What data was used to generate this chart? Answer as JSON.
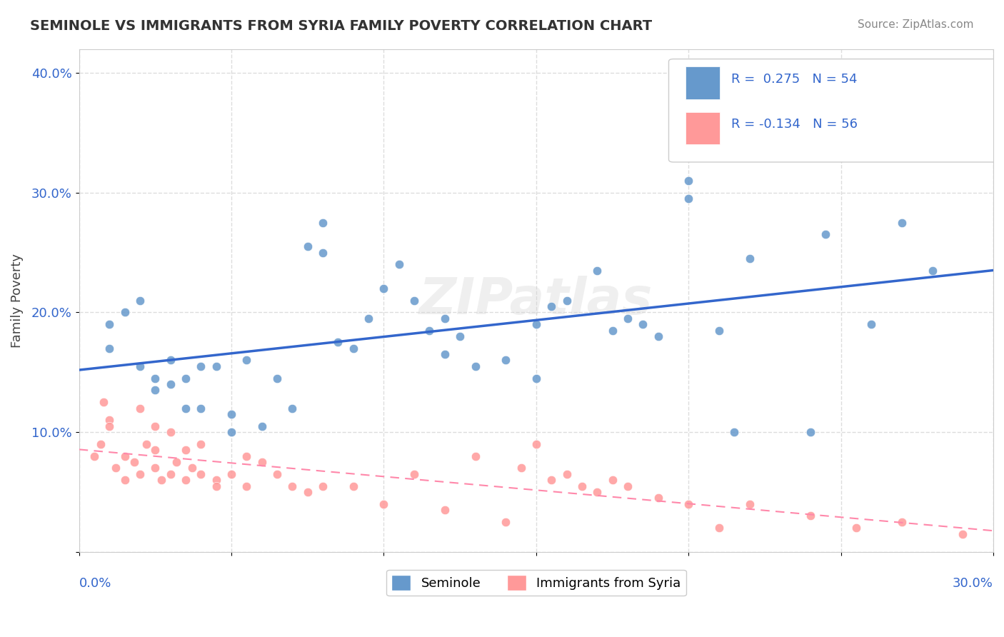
{
  "title": "SEMINOLE VS IMMIGRANTS FROM SYRIA FAMILY POVERTY CORRELATION CHART",
  "source": "Source: ZipAtlas.com",
  "ylabel": "Family Poverty",
  "xlim": [
    0.0,
    0.3
  ],
  "ylim": [
    0.0,
    0.42
  ],
  "yticks": [
    0.0,
    0.1,
    0.2,
    0.3,
    0.4
  ],
  "ytick_labels": [
    "",
    "10.0%",
    "20.0%",
    "30.0%",
    "40.0%"
  ],
  "blue_color": "#6699CC",
  "pink_color": "#FF9999",
  "blue_line_color": "#3366CC",
  "pink_line_color": "#FF88AA",
  "watermark": "ZIPatlas",
  "background_color": "#FFFFFF",
  "grid_color": "#DDDDDD",
  "seminole_x": [
    0.01,
    0.01,
    0.015,
    0.02,
    0.02,
    0.025,
    0.025,
    0.03,
    0.03,
    0.035,
    0.035,
    0.04,
    0.04,
    0.045,
    0.05,
    0.05,
    0.055,
    0.06,
    0.065,
    0.07,
    0.075,
    0.08,
    0.08,
    0.085,
    0.09,
    0.095,
    0.1,
    0.105,
    0.11,
    0.115,
    0.12,
    0.12,
    0.125,
    0.13,
    0.14,
    0.15,
    0.15,
    0.155,
    0.16,
    0.17,
    0.175,
    0.18,
    0.185,
    0.19,
    0.2,
    0.2,
    0.21,
    0.215,
    0.22,
    0.24,
    0.245,
    0.26,
    0.27,
    0.28
  ],
  "seminole_y": [
    0.19,
    0.17,
    0.2,
    0.21,
    0.155,
    0.145,
    0.135,
    0.14,
    0.16,
    0.12,
    0.145,
    0.12,
    0.155,
    0.155,
    0.1,
    0.115,
    0.16,
    0.105,
    0.145,
    0.12,
    0.255,
    0.25,
    0.275,
    0.175,
    0.17,
    0.195,
    0.22,
    0.24,
    0.21,
    0.185,
    0.165,
    0.195,
    0.18,
    0.155,
    0.16,
    0.19,
    0.145,
    0.205,
    0.21,
    0.235,
    0.185,
    0.195,
    0.19,
    0.18,
    0.295,
    0.31,
    0.185,
    0.1,
    0.245,
    0.1,
    0.265,
    0.19,
    0.275,
    0.235
  ],
  "syria_x": [
    0.005,
    0.007,
    0.008,
    0.01,
    0.01,
    0.012,
    0.015,
    0.015,
    0.018,
    0.02,
    0.02,
    0.022,
    0.025,
    0.025,
    0.025,
    0.027,
    0.03,
    0.03,
    0.032,
    0.035,
    0.035,
    0.037,
    0.04,
    0.04,
    0.045,
    0.045,
    0.05,
    0.055,
    0.055,
    0.06,
    0.065,
    0.07,
    0.075,
    0.08,
    0.09,
    0.1,
    0.11,
    0.12,
    0.13,
    0.14,
    0.145,
    0.15,
    0.155,
    0.16,
    0.165,
    0.17,
    0.175,
    0.18,
    0.19,
    0.2,
    0.21,
    0.22,
    0.24,
    0.255,
    0.27,
    0.29
  ],
  "syria_y": [
    0.08,
    0.09,
    0.125,
    0.11,
    0.105,
    0.07,
    0.06,
    0.08,
    0.075,
    0.065,
    0.12,
    0.09,
    0.07,
    0.085,
    0.105,
    0.06,
    0.065,
    0.1,
    0.075,
    0.06,
    0.085,
    0.07,
    0.065,
    0.09,
    0.06,
    0.055,
    0.065,
    0.055,
    0.08,
    0.075,
    0.065,
    0.055,
    0.05,
    0.055,
    0.055,
    0.04,
    0.065,
    0.035,
    0.08,
    0.025,
    0.07,
    0.09,
    0.06,
    0.065,
    0.055,
    0.05,
    0.06,
    0.055,
    0.045,
    0.04,
    0.02,
    0.04,
    0.03,
    0.02,
    0.025,
    0.015
  ]
}
